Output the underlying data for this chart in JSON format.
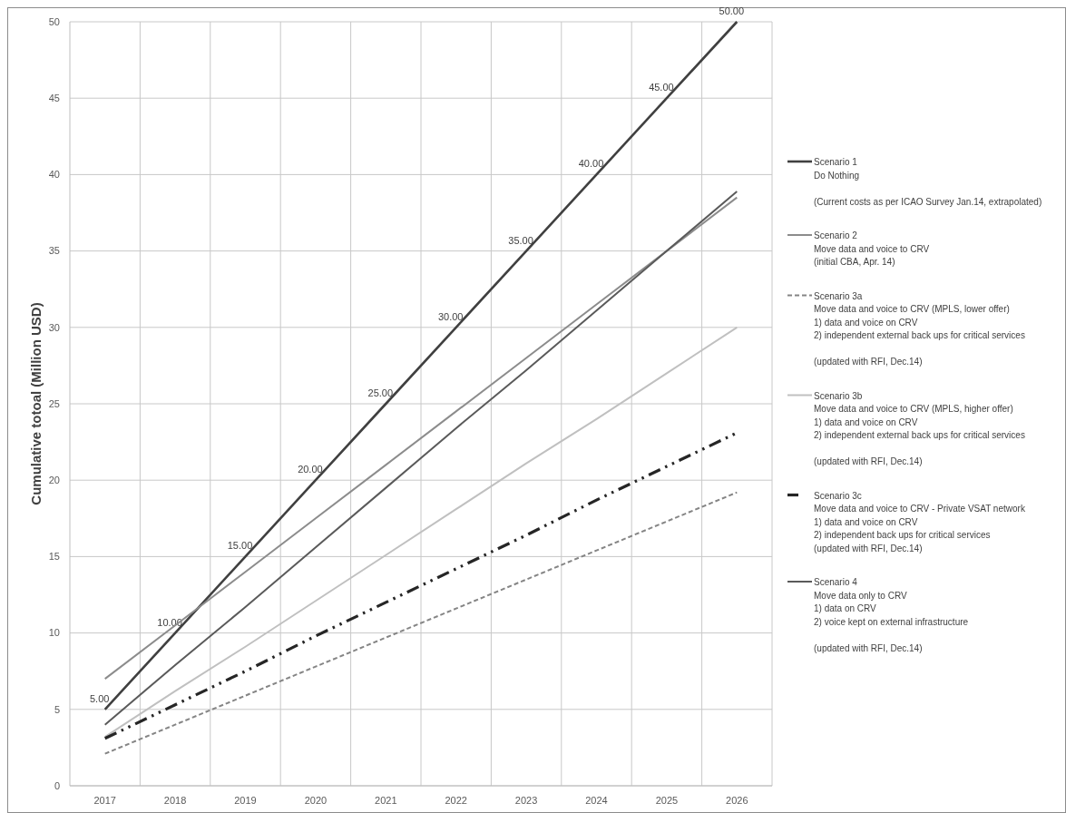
{
  "chart_data": {
    "type": "line",
    "ylabel": "Cumulative totoal (Million USD)",
    "categories": [
      "2017",
      "2018",
      "2019",
      "2020",
      "2021",
      "2022",
      "2023",
      "2024",
      "2025",
      "2026"
    ],
    "ylim": [
      0,
      50
    ],
    "yticks": [
      0,
      5,
      10,
      15,
      20,
      25,
      30,
      35,
      40,
      45,
      50
    ],
    "grid": true,
    "legend": "right",
    "series": [
      {
        "name": "Scenario 1\nDo Nothing\n\n(Current costs as per ICAO Survey Jan.14, extrapolated)",
        "color": "#404040",
        "line_style": "solid",
        "values": [
          5,
          10,
          15,
          20,
          25,
          30,
          35,
          40,
          45,
          50
        ],
        "value_labels": [
          "5.00",
          "10.00",
          "15.00",
          "20.00",
          "25.00",
          "30.00",
          "35.00",
          "40.00",
          "45.00",
          "50.00"
        ]
      },
      {
        "name": "Scenario 2\nMove data and voice to CRV\n(initial CBA, Apr. 14)",
        "color": "#8c8c8c",
        "line_style": "solid",
        "values": [
          7,
          10.5,
          14,
          17.5,
          21,
          24.5,
          28,
          31.5,
          35,
          38.5
        ]
      },
      {
        "name": "Scenario 3a\nMove data and voice to CRV (MPLS, lower offer)\n1) data and voice on CRV\n2) independent external back ups for critical services\n\n(updated with RFI, Dec.14)",
        "color": "#858585",
        "line_style": "dashed",
        "values": [
          2.1,
          4.0,
          5.9,
          7.8,
          9.7,
          11.6,
          13.5,
          15.4,
          17.3,
          19.2
        ]
      },
      {
        "name": "Scenario 3b\nMove data and voice to CRV (MPLS, higher offer)\n1) data and voice on CRV\n2) independent external back ups for critical services\n\n(updated with RFI, Dec.14)",
        "color": "#c0c0c0",
        "line_style": "solid",
        "values": [
          3.2,
          6.2,
          9.1,
          12.1,
          15.1,
          18.1,
          21.1,
          24.0,
          27.0,
          30.0
        ]
      },
      {
        "name": "Scenario 3c\nMove data and voice to CRV - Private VSAT network\n1) data and voice on CRV\n2) independent back ups for critical services\n(updated with RFI, Dec.14)",
        "color": "#262626",
        "line_style": "dashdot",
        "values": [
          3.1,
          5.3,
          7.5,
          9.8,
          12.0,
          14.2,
          16.4,
          18.7,
          20.9,
          23.1
        ]
      },
      {
        "name": "Scenario 4\nMove data only to CRV\n1) data on CRV\n2) voice kept on external infrastructure\n\n(updated with RFI, Dec.14)",
        "color": "#5a5a5a",
        "line_style": "solid",
        "values": [
          4,
          7.9,
          11.7,
          15.6,
          19.5,
          23.4,
          27.2,
          31.1,
          35.0,
          38.9
        ]
      }
    ]
  }
}
